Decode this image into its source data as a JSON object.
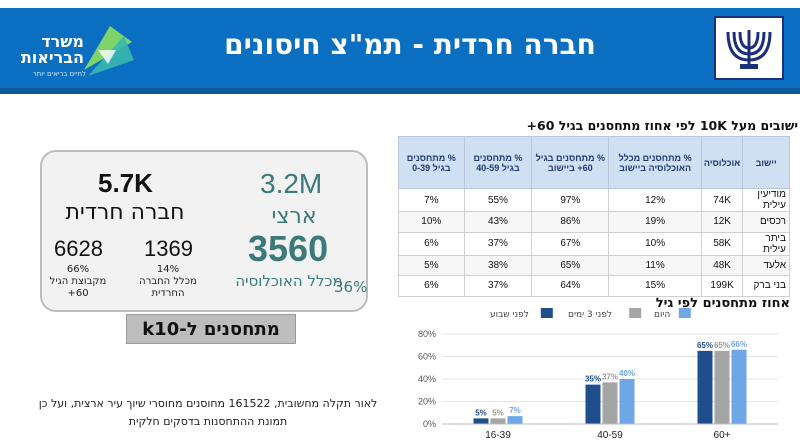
{
  "header": {
    "title": "חברה חרדית - תמ\"צ חיסונים",
    "logo_left_name": "משרד הבריאות",
    "logo_left_tag": "לחיים בריאים יותר"
  },
  "stats": {
    "haredi": {
      "value": "5.7K",
      "label": "חברה חרדית"
    },
    "national": {
      "value": "3.2M",
      "label": "ארצי"
    },
    "vaccinated": {
      "value": "3560",
      "label": "מכלל האוכלוסיה",
      "pct": "36%"
    },
    "sub1": {
      "value": "6628",
      "pct": "66%",
      "label": "מקבוצת הגיל 60+"
    },
    "sub2": {
      "value": "1369",
      "pct": "14%",
      "label": "מכלל החברה החרדית"
    },
    "k10_label": "מתחסנים ל-k10"
  },
  "footnote": "לאור תקלה מחשובית, 161522 מחוסנים מחוסרי שיוך עיר ארצית, ועל כן תמונת ההתחסנות בדסקים חלקית",
  "table": {
    "title": "ישובים מעל 10K לפי אחוז מתחסנים בגיל 60+",
    "headers": [
      "יישוב",
      "אוכלוסיה",
      "% מתחסנים מכלל האוכלוסיה ביישוב",
      "% מתחסנים בגיל 60+ ביישוב",
      "% מתחסנים בגיל 40-59",
      "% מתחסנים בגיל 0-39"
    ],
    "rows": [
      [
        "מודיעין עילית",
        "74K",
        "12%",
        "97%",
        "55%",
        "7%"
      ],
      [
        "רכסים",
        "12K",
        "19%",
        "86%",
        "43%",
        "10%"
      ],
      [
        "ביתר עילית",
        "58K",
        "10%",
        "67%",
        "37%",
        "6%"
      ],
      [
        "אלעד",
        "48K",
        "11%",
        "65%",
        "38%",
        "5%"
      ],
      [
        "בני ברק",
        "199K",
        "15%",
        "64%",
        "37%",
        "6%"
      ]
    ]
  },
  "chart_data": {
    "type": "bar",
    "title": "אחוז מתחסנים לפי גיל",
    "categories": [
      "16-39",
      "40-59",
      "60+"
    ],
    "series": [
      {
        "name": "לפני שבוע",
        "values": [
          5,
          35,
          65
        ]
      },
      {
        "name": "לפני 3 ימים",
        "values": [
          5,
          37,
          65
        ]
      },
      {
        "name": "היום",
        "values": [
          7,
          40,
          66
        ]
      }
    ],
    "labels": [
      [
        "5%",
        "5%",
        "7%"
      ],
      [
        "35%",
        "37%",
        "40%"
      ],
      [
        "65%",
        "65%",
        "66%"
      ]
    ],
    "yticks": [
      "0%",
      "20%",
      "40%",
      "60%",
      "80%"
    ],
    "ylim": [
      0,
      80
    ],
    "colors": [
      "#1f4e8c",
      "#a5a5a5",
      "#6ea6e6"
    ],
    "legend": "top"
  }
}
